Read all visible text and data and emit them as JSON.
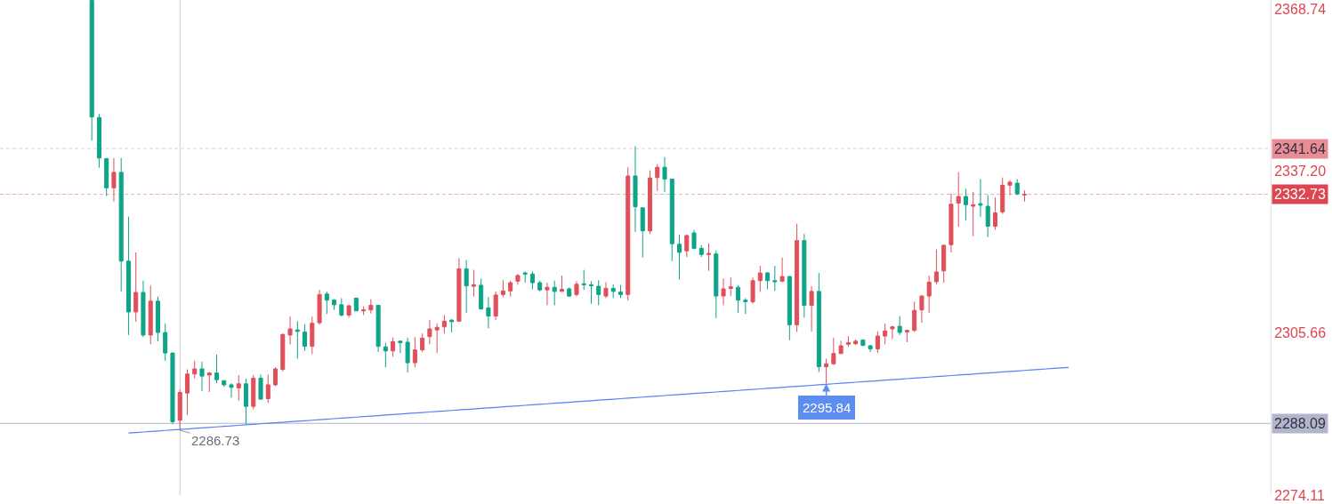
{
  "chart_data": {
    "type": "candlestick",
    "categories": [
      null,
      null,
      null,
      null,
      null,
      null,
      null,
      null,
      null,
      null,
      null,
      null,
      null,
      null,
      null,
      null,
      null,
      null,
      null,
      null,
      null,
      null,
      null,
      null,
      null,
      null,
      null,
      null,
      null,
      null,
      null,
      null,
      null,
      null,
      null,
      null,
      null,
      null,
      null,
      null,
      null,
      null,
      null,
      null,
      null,
      null,
      null,
      null,
      null,
      null,
      null,
      null,
      null,
      null,
      null,
      null,
      null,
      null,
      null,
      null,
      null,
      null,
      null,
      null,
      null,
      null,
      null,
      null,
      null,
      null,
      null,
      null,
      null,
      null,
      null,
      null,
      null,
      null,
      null,
      null,
      null,
      null,
      null,
      null,
      null,
      null,
      null,
      null,
      null,
      null,
      null,
      null,
      null,
      null,
      null,
      null,
      null,
      null,
      null,
      null,
      null,
      null,
      null,
      null,
      null,
      null,
      null,
      null,
      null,
      null,
      null,
      null,
      null,
      null,
      null,
      null,
      null,
      null,
      null,
      null,
      null,
      null,
      null,
      null,
      null,
      null,
      null,
      null,
      null,
      null,
      null,
      null,
      null,
      null,
      null,
      null,
      null,
      null,
      null,
      null,
      null,
      null,
      null,
      null,
      null,
      null,
      null,
      null,
      null,
      null,
      null,
      null,
      null,
      null,
      null,
      null,
      null,
      null,
      null,
      null,
      null,
      null,
      null,
      null,
      null,
      null,
      null,
      null,
      null,
      null,
      null,
      null,
      null
    ],
    "ohlc": [
      null,
      null,
      null,
      null,
      null,
      null,
      null,
      null,
      null,
      null,
      null,
      null,
      [
        2370.5,
        2370.5,
        2343.2,
        2347.8
      ],
      [
        2347.7,
        2348.4,
        2337.9,
        2339.8
      ],
      [
        2339.7,
        2339.7,
        2332.4,
        2334.0
      ],
      [
        2334.0,
        2339.8,
        2331.3,
        2337.0
      ],
      [
        2337.0,
        2339.8,
        2313.8,
        2319.7
      ],
      [
        2319.7,
        2328.4,
        2305.3,
        2309.8
      ],
      [
        2309.8,
        2321.4,
        2307.9,
        2313.6
      ],
      [
        2313.6,
        2315.9,
        2304.9,
        2305.3
      ],
      [
        2305.3,
        2314.9,
        2303.5,
        2311.9
      ],
      [
        2311.9,
        2312.8,
        2304.1,
        2305.8
      ],
      [
        2305.8,
        2307.5,
        2300.3,
        2301.8
      ],
      [
        2301.8,
        2301.8,
        2287.9,
        2288.4
      ],
      [
        2288.7,
        2294.6,
        2286.73,
        2294.1
      ],
      [
        2294.0,
        2298.6,
        2289.7,
        2297.7
      ],
      [
        2297.7,
        2300.3,
        2296.8,
        2298.7
      ],
      [
        2298.7,
        2300.1,
        2294.4,
        2297.3
      ],
      [
        2297.5,
        2298.1,
        2294.2,
        2297.9
      ],
      [
        2297.9,
        2301.5,
        2295.9,
        2296.6
      ],
      [
        2296.4,
        2296.4,
        2295.2,
        2295.6
      ],
      [
        2295.6,
        2295.9,
        2293.1,
        2295.1
      ],
      [
        2295.0,
        2297.5,
        2292.5,
        2295.8
      ],
      [
        2295.8,
        2296.8,
        2288.0,
        2291.4
      ],
      [
        2291.4,
        2297.5,
        2290.8,
        2296.9
      ],
      [
        2296.9,
        2297.6,
        2292.7,
        2292.8
      ],
      [
        2292.9,
        2297.6,
        2292.1,
        2295.6
      ],
      [
        2295.6,
        2299.0,
        2295.3,
        2298.7
      ],
      [
        2298.6,
        2305.6,
        2298.2,
        2305.4
      ],
      [
        2305.3,
        2308.9,
        2303.5,
        2306.5
      ],
      [
        2306.3,
        2308.0,
        2300.7,
        2306.0
      ],
      [
        2305.9,
        2307.4,
        2302.2,
        2303.1
      ],
      [
        2303.1,
        2308.9,
        2301.6,
        2307.6
      ],
      [
        2307.7,
        2314.1,
        2307.3,
        2313.2
      ],
      [
        2313.3,
        2313.8,
        2309.4,
        2312.1
      ],
      [
        2312.1,
        2312.3,
        2310.2,
        2311.2
      ],
      [
        2311.2,
        2312.5,
        2308.9,
        2309.2
      ],
      [
        2309.2,
        2311.2,
        2308.7,
        2311.0
      ],
      [
        2312.5,
        2312.5,
        2310.0,
        2310.0
      ],
      [
        2310.0,
        2310.9,
        2309.2,
        2310.2
      ],
      [
        2310.2,
        2312.3,
        2309.5,
        2311.1
      ],
      [
        2311.1,
        2311.1,
        2302.0,
        2303.1
      ],
      [
        2303.0,
        2303.8,
        2299.0,
        2302.2
      ],
      [
        2302.2,
        2304.8,
        2301.1,
        2304.0
      ],
      [
        2304.1,
        2304.2,
        2301.8,
        2303.8
      ],
      [
        2303.9,
        2304.8,
        2298.0,
        2299.9
      ],
      [
        2299.9,
        2304.9,
        2299.0,
        2302.4
      ],
      [
        2302.4,
        2305.6,
        2302.0,
        2304.7
      ],
      [
        2305.0,
        2308.2,
        2303.5,
        2306.5
      ],
      [
        2306.3,
        2307.6,
        2301.8,
        2306.8
      ],
      [
        2306.9,
        2309.2,
        2305.6,
        2308.0
      ],
      [
        2308.2,
        2308.4,
        2305.8,
        2307.9
      ],
      [
        2308.0,
        2320.3,
        2307.9,
        2318.2
      ],
      [
        2318.2,
        2319.9,
        2309.6,
        2314.9
      ],
      [
        2314.8,
        2318.0,
        2312.8,
        2315.1
      ],
      [
        2315.0,
        2316.3,
        2310.2,
        2310.4
      ],
      [
        2310.6,
        2312.7,
        2306.6,
        2309.0
      ],
      [
        2309.0,
        2313.8,
        2308.2,
        2313.1
      ],
      [
        2313.2,
        2316.0,
        2312.7,
        2313.9
      ],
      [
        2313.9,
        2315.9,
        2312.8,
        2315.5
      ],
      [
        2315.8,
        2317.2,
        2315.1,
        2316.9
      ],
      [
        2317.4,
        2317.7,
        2315.5,
        2317.2
      ],
      [
        2317.2,
        2317.7,
        2314.2,
        2315.5
      ],
      [
        2315.5,
        2315.9,
        2313.8,
        2314.1
      ],
      [
        2314.1,
        2315.5,
        2311.1,
        2314.6
      ],
      [
        2314.6,
        2315.9,
        2311.1,
        2313.8
      ],
      [
        2313.8,
        2316.9,
        2313.8,
        2314.2
      ],
      [
        2314.3,
        2314.6,
        2312.7,
        2312.9
      ],
      [
        2313.2,
        2315.8,
        2312.8,
        2315.2
      ],
      [
        2315.3,
        2318.0,
        2314.1,
        2315.1
      ],
      [
        2315.1,
        2315.8,
        2311.4,
        2314.9
      ],
      [
        2314.8,
        2316.0,
        2311.1,
        2313.2
      ],
      [
        2312.9,
        2315.6,
        2312.5,
        2314.4
      ],
      [
        2314.4,
        2315.2,
        2312.5,
        2313.8
      ],
      [
        2313.7,
        2315.0,
        2312.5,
        2313.2
      ],
      [
        2313.2,
        2338.0,
        2312.0,
        2336.3
      ],
      [
        2336.3,
        2342.1,
        2325.4,
        2330.3
      ],
      [
        2330.1,
        2330.2,
        2320.4,
        2325.6
      ],
      [
        2325.6,
        2337.4,
        2325.0,
        2335.9
      ],
      [
        2336.0,
        2338.6,
        2333.4,
        2338.0
      ],
      [
        2338.0,
        2340.0,
        2333.2,
        2335.7
      ],
      [
        2335.7,
        2335.7,
        2319.7,
        2323.1
      ],
      [
        2323.0,
        2324.9,
        2316.1,
        2321.4
      ],
      [
        2321.7,
        2324.9,
        2320.5,
        2324.7
      ],
      [
        2325.2,
        2325.8,
        2322.0,
        2322.2
      ],
      [
        2322.2,
        2322.8,
        2320.5,
        2321.0
      ],
      [
        2321.0,
        2323.2,
        2317.8,
        2321.2
      ],
      [
        2321.1,
        2321.8,
        2308.6,
        2312.9
      ],
      [
        2312.9,
        2316.3,
        2311.1,
        2314.3
      ],
      [
        2314.4,
        2316.5,
        2312.9,
        2314.7
      ],
      [
        2314.6,
        2315.0,
        2309.6,
        2312.1
      ],
      [
        2312.1,
        2312.5,
        2309.4,
        2311.8
      ],
      [
        2311.8,
        2316.5,
        2311.4,
        2315.9
      ],
      [
        2315.9,
        2318.8,
        2313.7,
        2317.4
      ],
      [
        2317.4,
        2317.6,
        2314.2,
        2315.9
      ],
      [
        2315.9,
        2318.8,
        2313.9,
        2315.7
      ],
      [
        2315.8,
        2320.4,
        2315.6,
        2316.7
      ],
      [
        2316.7,
        2316.8,
        2304.3,
        2307.3
      ],
      [
        2307.3,
        2327.0,
        2305.9,
        2323.7
      ],
      [
        2323.7,
        2325.0,
        2308.7,
        2311.1
      ],
      [
        2311.1,
        2314.8,
        2306.0,
        2313.8
      ],
      [
        2313.8,
        2317.4,
        2298.1,
        2299.1
      ],
      [
        2299.1,
        2300.7,
        2295.84,
        2299.7
      ],
      [
        2299.7,
        2304.8,
        2299.5,
        2301.7
      ],
      [
        2301.7,
        2304.2,
        2301.6,
        2303.2
      ],
      [
        2303.5,
        2305.1,
        2303.0,
        2303.8
      ],
      [
        2303.6,
        2304.5,
        2303.4,
        2304.1
      ],
      [
        2304.3,
        2304.5,
        2303.1,
        2303.3
      ],
      [
        2303.2,
        2303.4,
        2302.0,
        2302.6
      ],
      [
        2302.6,
        2306.0,
        2301.8,
        2305.1
      ],
      [
        2305.1,
        2307.5,
        2303.5,
        2306.1
      ],
      [
        2306.5,
        2307.1,
        2304.5,
        2306.9
      ],
      [
        2307.0,
        2309.0,
        2305.3,
        2305.8
      ],
      [
        2305.9,
        2306.3,
        2303.9,
        2306.2
      ],
      [
        2306.2,
        2311.8,
        2305.9,
        2310.1
      ],
      [
        2310.2,
        2313.1,
        2307.7,
        2312.9
      ],
      [
        2312.9,
        2316.9,
        2309.6,
        2315.6
      ],
      [
        2315.7,
        2322.0,
        2315.2,
        2317.6
      ],
      [
        2317.8,
        2322.9,
        2315.5,
        2322.8
      ],
      [
        2322.9,
        2332.9,
        2321.4,
        2330.8
      ],
      [
        2331.0,
        2337.0,
        2326.4,
        2332.3
      ],
      [
        2332.3,
        2333.8,
        2327.6,
        2330.7
      ],
      [
        2330.4,
        2333.2,
        2324.6,
        2330.7
      ],
      [
        2330.9,
        2335.7,
        2328.3,
        2330.6
      ],
      [
        2330.4,
        2332.6,
        2324.4,
        2326.5
      ],
      [
        2326.5,
        2332.1,
        2325.8,
        2329.1
      ],
      [
        2329.3,
        2336.0,
        2328.9,
        2334.5
      ],
      [
        2334.5,
        2335.5,
        2332.6,
        2335.1
      ],
      [
        2334.9,
        2335.7,
        2332.6,
        2332.8
      ],
      [
        2332.6,
        2333.5,
        2331.3,
        2332.73
      ],
      null,
      null,
      null,
      null,
      null,
      null,
      null,
      null,
      null,
      null,
      null,
      null,
      null,
      null,
      null,
      null,
      null,
      null,
      null,
      null,
      null,
      null,
      null,
      null,
      null,
      null,
      null,
      null,
      null,
      null,
      null,
      null,
      null
    ],
    "colors": [
      null,
      null,
      null,
      null,
      null,
      null,
      null,
      null,
      null,
      null,
      null,
      null,
      "#0ea488",
      "#0ea488",
      "#0ea488",
      "#e0505b",
      "#0ea488",
      "#0ea488",
      "#e0505b",
      "#0ea488",
      "#e0505b",
      "#0ea488",
      "#0ea488",
      "#0ea488",
      "#e0505b",
      "#e0505b",
      "#e0505b",
      "#0ea488",
      "#e0505b",
      "#0ea488",
      "#0ea488",
      "#0ea488",
      "#e0505b",
      "#0ea488",
      "#e0505b",
      "#0ea488",
      "#e0505b",
      "#e0505b",
      "#e0505b",
      "#e0505b",
      "#0ea488",
      "#0ea488",
      "#e0505b",
      "#e0505b",
      "#0ea488",
      "#0ea488",
      "#0ea488",
      "#e0505b",
      "#0ea488",
      "#e0505b",
      "#e0505b",
      "#0ea488",
      "#0ea488",
      "#e0505b",
      "#0ea488",
      "#0ea488",
      "#e0505b",
      "#e0505b",
      "#e0505b",
      "#e0505b",
      "#e0505b",
      "#0ea488",
      "#e0505b",
      "#0ea488",
      "#e0505b",
      "#0ea488",
      "#0ea488",
      "#e0505b",
      "#e0505b",
      "#e0505b",
      "#e0505b",
      "#0ea488",
      "#0ea488",
      "#0ea488",
      "#e0505b",
      "#0ea488",
      "#e0505b",
      "#0ea488",
      "#e0505b",
      "#0ea488",
      "#0ea488",
      "#0ea488",
      "#e0505b",
      "#0ea488",
      "#0ea488",
      "#e0505b",
      "#0ea488",
      "#0ea488",
      "#e0505b",
      "#e0505b",
      "#0ea488",
      "#0ea488",
      "#0ea488",
      "#e0505b",
      "#0ea488",
      "#0ea488",
      "#e0505b",
      "#0ea488",
      "#e0505b",
      "#e0505b",
      "#0ea488",
      "#0ea488",
      "#e0505b",
      "#e0505b",
      "#0ea488",
      "#0ea488",
      "#e0505b",
      "#0ea488",
      "#e0505b",
      "#0ea488",
      "#e0505b",
      "#0ea488",
      "#e0505b",
      "#e0505b",
      "#e0505b",
      "#e0505b",
      "#e0505b",
      "#0ea488",
      "#0ea488",
      "#e0505b",
      "#e0505b",
      "#e0505b",
      "#0ea488",
      "#e0505b",
      "#e0505b",
      "#e0505b",
      "#e0505b",
      "#e0505b",
      "#e0505b",
      "#e0505b",
      "#e0505b",
      "#0ea488",
      "#e0505b",
      "#0ea488",
      "#0ea488",
      "#e0505b",
      "#e0505b",
      "#e0505b",
      "#0ea488",
      "#e0505b",
      null,
      null,
      null,
      null,
      null,
      null,
      null,
      null,
      null,
      null,
      null,
      null,
      null,
      null,
      null,
      null,
      null,
      null,
      null,
      null,
      null,
      null,
      null,
      null,
      null,
      null,
      null,
      null,
      null,
      null,
      null,
      null,
      null
    ],
    "series": [
      {
        "type": "line",
        "color": "#5a80f2",
        "values": [
          null,
          null,
          null,
          null,
          null,
          null,
          null,
          null,
          null,
          null,
          null,
          null,
          null,
          null,
          null,
          null,
          null,
          2286.2,
          2286.3,
          2286.4,
          2286.5,
          2286.6,
          2286.7,
          2286.8,
          2286.9,
          2287.0,
          2287.1,
          2287.2,
          2287.3,
          2287.4,
          2287.5,
          2287.6,
          2287.7,
          2287.8,
          2287.9,
          2288.0,
          2288.1,
          2288.2,
          2288.3,
          2288.4,
          2288.5,
          2288.6,
          2288.7,
          2288.8,
          2288.9,
          2289.0,
          2289.1,
          2289.2,
          2289.3,
          2289.4,
          2289.5,
          2289.6,
          2289.7,
          2289.8,
          2289.9,
          2290.0,
          2290.1,
          2290.2,
          2290.3,
          2290.4,
          2290.5,
          2290.6,
          2290.7,
          2290.8,
          2290.9,
          2291.0,
          2291.1,
          2291.2,
          2291.3,
          2291.4,
          2291.5,
          2291.6,
          2291.7,
          2291.8,
          2291.9,
          2292.0,
          2292.1,
          2292.2,
          2292.3,
          2292.4,
          2292.5,
          2292.6,
          2292.7,
          2292.8,
          2292.9,
          2293.0,
          2293.1,
          2293.2,
          2293.3,
          2293.4,
          2293.5,
          2293.6,
          2293.7,
          2293.8,
          2293.9,
          2294.0,
          2294.1,
          2294.2,
          2294.3,
          2294.4,
          2294.5,
          2294.6,
          2294.7,
          2294.8,
          2294.9,
          2295.0,
          2295.1,
          2295.2,
          2295.3,
          2295.4,
          2295.5,
          2295.6,
          2295.7,
          2295.8,
          2295.9,
          2296.0,
          2296.1,
          2296.2,
          2296.3,
          2296.4,
          2296.5,
          2296.6,
          2296.7,
          2296.8,
          2296.9,
          2297.0,
          2297.1,
          2297.2,
          2297.3,
          2297.4,
          2297.5,
          2297.6,
          2297.7,
          2297.8,
          2297.9,
          2298.0,
          2298.1,
          2298.2,
          2298.3,
          2298.4,
          2298.5,
          2298.6,
          2298.7,
          2298.8,
          2298.9,
          2299.0,
          null,
          null,
          null,
          null,
          null,
          null,
          null,
          null,
          null,
          null,
          null,
          null,
          null,
          null,
          null,
          null,
          null,
          null,
          null,
          null,
          null,
          null,
          null,
          null,
          null,
          null,
          null
        ]
      }
    ],
    "ylim": [
      2274.1,
      2370.6
    ],
    "yticks": [
      2368.74,
      {
        "value": 2337.2,
        "label": "2337.20"
      },
      2305.66,
      2274.11
    ],
    "ref_lines": [
      {
        "axis": "y",
        "value": 2341.64,
        "label": "2341.64",
        "color": "#e98c95",
        "line_style": "dashed"
      },
      {
        "axis": "y",
        "value": 2332.73,
        "label": "2332.73",
        "color": "#dd4550",
        "line_style": "dashed"
      },
      {
        "axis": "y",
        "value": 2288.09,
        "label": "2288.09",
        "color": "#b2b5cc",
        "line_style": "solid"
      }
    ],
    "annotations": [
      {
        "text": "2286.73",
        "y": 2286.73
      },
      {
        "text": "2295.84",
        "y": 2295.84
      }
    ],
    "tick_labels": "y"
  }
}
